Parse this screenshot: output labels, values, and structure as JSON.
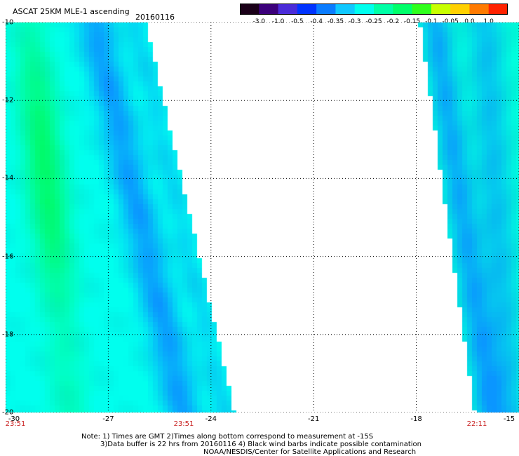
{
  "title": "ASCAT 25KM MLE-1 ascending",
  "date": "20160116",
  "colorbar": {
    "labels": [
      "-3.0",
      "-1.0",
      "-0.5",
      "-0.4",
      "-0.35",
      "-0.3",
      "-0.25",
      "-0.2",
      "-0.15",
      "-0.1",
      "-0.05",
      "0.0",
      "1.0"
    ],
    "colors": [
      "#1a0018",
      "#3b007a",
      "#4a2bd8",
      "#0033ff",
      "#0a7cff",
      "#10c8ff",
      "#00ffee",
      "#00ffa6",
      "#00ff6a",
      "#2fff1c",
      "#c8ff00",
      "#ffd000",
      "#ff7a00",
      "#ff2200"
    ]
  },
  "axes": {
    "x_ticks": [
      "-30",
      "-27",
      "-24",
      "-21",
      "-18",
      "-15"
    ],
    "y_ticks": [
      "-10",
      "-12",
      "-14",
      "-16",
      "-18",
      "-20"
    ]
  },
  "pass_times": [
    "23:51",
    "23:51",
    "22:11"
  ],
  "notes": [
    "Note: 1) Times are GMT 2)Times along bottom correspond to measurement at -15S",
    "3)Data buffer is 22 hrs from 20160116 4) Black wind barbs indicate possible contamination",
    "NOAA/NESDIS/Center for Satellite Applications and Research"
  ],
  "chart_data": {
    "type": "heatmap",
    "title": "ASCAT 25KM MLE-1 ascending",
    "xlim": [
      -30,
      -15
    ],
    "ylim": [
      -20,
      -10
    ],
    "value_range": [
      -3.0,
      1.0
    ],
    "grid": true,
    "swaths": [
      {
        "lon_west": -30.0,
        "lon_east_at_top": -25.9,
        "lon_east_at_bottom": -23.3,
        "pass_time": "23:51"
      },
      {
        "lon_west_at_top": -17.9,
        "lon_west_at_bottom": -16.3,
        "lon_east": -15.0,
        "pass_time": "22:11"
      }
    ]
  }
}
